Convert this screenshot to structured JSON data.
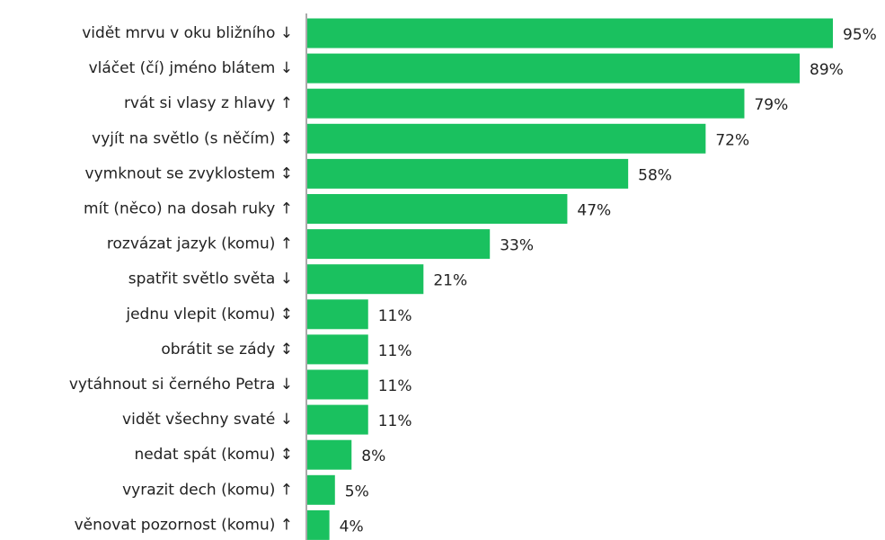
{
  "chart_data": {
    "type": "bar",
    "orientation": "horizontal",
    "color": "#1ac15f",
    "categories": [
      "vidět mrvu v oku bližního ↓",
      "vláčet (čí) jméno blátem ↓",
      "rvát si vlasy z hlavy ↑",
      "vyjít na světlo (s něčím) ↕",
      "vymknout se zvyklostem ↕",
      "mít (něco) na dosah ruky ↑",
      "rozvázat jazyk (komu) ↑",
      "spatřit světlo světa ↓",
      "jednu vlepit (komu) ↕",
      "obrátit se zády ↕",
      "vytáhnout si černého Petra ↓",
      "vidět všechny svaté ↓",
      "nedat spát (komu) ↕",
      "vyrazit dech (komu) ↑",
      "věnovat pozornost (komu) ↑"
    ],
    "values": [
      95,
      89,
      79,
      72,
      58,
      47,
      33,
      21,
      11,
      11,
      11,
      11,
      8,
      5,
      4
    ],
    "value_labels": [
      "95%",
      "89%",
      "79%",
      "72%",
      "58%",
      "47%",
      "33%",
      "21%",
      "11%",
      "11%",
      "11%",
      "11%",
      "8%",
      "5%",
      "4%"
    ]
  }
}
